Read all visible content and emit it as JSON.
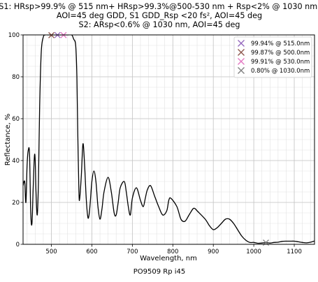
{
  "chart_data": {
    "type": "line",
    "title_lines": [
      "S1: HRsp>99.9% @ 515 nm+ HRsp>99.3%@500-530 nm + Rsp<2% @ 1030 nm,",
      "AOI=45 deg  GDD, S1 GDD_Rsp <20 fs², AOI=45 deg",
      "S2: ARsp<0.6% @ 1030 nm, AOI=45 deg"
    ],
    "xlabel": "Wavelength, nm",
    "ylabel": "Reflectance, %",
    "caption": "PO9509 Rp i45",
    "xlim": [
      430,
      1150
    ],
    "ylim": [
      0,
      100
    ],
    "x_major_ticks": [
      500,
      600,
      700,
      800,
      900,
      1000,
      1100
    ],
    "y_major_ticks": [
      0,
      20,
      40,
      60,
      80,
      100
    ],
    "x_minor_step": 20,
    "y_minor_step": 5,
    "grid": true,
    "legend_position": "top-right",
    "line_color": "#000000",
    "series": [
      {
        "x": [
          430,
          434,
          437,
          440,
          443,
          446,
          449,
          452,
          455,
          458,
          460,
          462,
          465,
          468,
          471,
          475,
          480,
          485,
          490,
          495,
          500,
          520,
          540,
          550,
          555,
          560,
          563,
          565,
          568,
          570,
          574,
          578,
          582,
          586,
          590,
          593,
          596,
          600,
          605,
          610,
          615,
          620,
          625,
          630,
          640,
          648,
          655,
          660,
          665,
          670,
          680,
          685,
          690,
          695,
          700,
          710,
          720,
          727,
          732,
          737,
          745,
          755,
          765,
          775,
          785,
          790,
          795,
          810,
          820,
          830,
          840,
          850,
          855,
          860,
          880,
          890,
          900,
          910,
          920,
          930,
          940,
          950,
          960,
          970,
          980,
          990,
          1000,
          1010,
          1020,
          1030,
          1040,
          1050,
          1060,
          1070,
          1080,
          1090,
          1100,
          1110,
          1120,
          1130,
          1140,
          1150
        ],
        "y": [
          28,
          30,
          20,
          38,
          45,
          43,
          15,
          10,
          27,
          42,
          40,
          25,
          14,
          30,
          66,
          92,
          99,
          100,
          100,
          100,
          100,
          100,
          100,
          100,
          98,
          95,
          80,
          55,
          25,
          22,
          33,
          48,
          38,
          22,
          13,
          14,
          20,
          30,
          35,
          30,
          18,
          12,
          17,
          25,
          32,
          25,
          15,
          14,
          20,
          27,
          30,
          25,
          18,
          14,
          22,
          27,
          21,
          18,
          22,
          26,
          28,
          23,
          18,
          14,
          16,
          21,
          22,
          18,
          12,
          11,
          14,
          17,
          17,
          16,
          12,
          9,
          7,
          8,
          10,
          12,
          12,
          10,
          7,
          4,
          2,
          0.9,
          0.9,
          0.5,
          0.6,
          0.8,
          0.6,
          0.9,
          1.0,
          1.4,
          1.5,
          1.5,
          1.5,
          1.2,
          0.9,
          0.7,
          1.0,
          1.6
        ]
      }
    ],
    "markers": [
      {
        "label": "99.94% @ 515.0nm",
        "x": 515.0,
        "y": 99.94,
        "color": "#9467bd"
      },
      {
        "label": "99.87% @ 500.0nm",
        "x": 500.0,
        "y": 99.87,
        "color": "#8c564b"
      },
      {
        "label": "99.91% @ 530.0nm",
        "x": 530.0,
        "y": 99.91,
        "color": "#e377c2"
      },
      {
        "label": "0.80% @ 1030.0nm",
        "x": 1030.0,
        "y": 0.8,
        "color": "#7f7f7f"
      }
    ]
  }
}
